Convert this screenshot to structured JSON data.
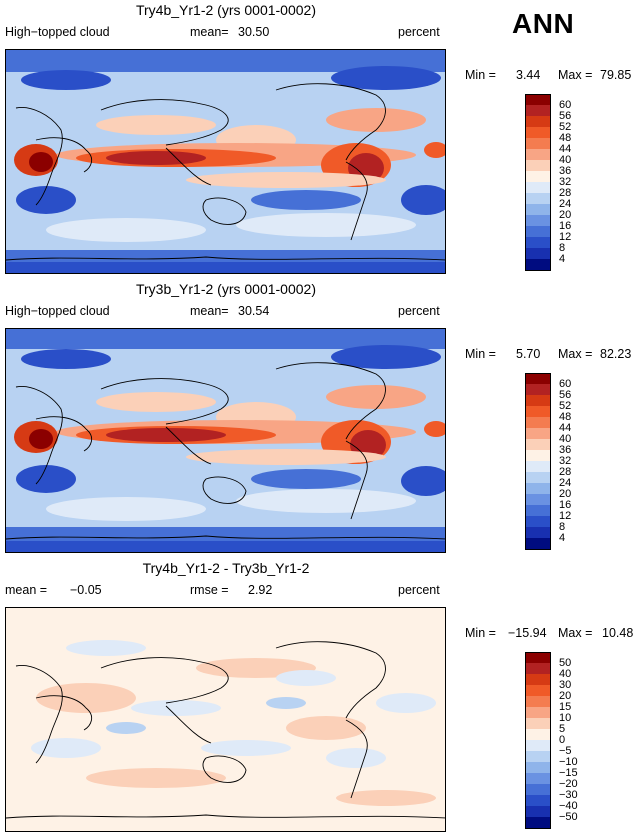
{
  "page_title": "ANN",
  "panels": [
    {
      "title": "Try4b_Yr1-2 (yrs 0001-0002)",
      "left_label": "High−topped cloud",
      "mid_label": "mean=",
      "mid_value": "30.50",
      "right_label": "percent",
      "min_label": "Min =",
      "min_value": "3.44",
      "max_label": "Max =",
      "max_value": "79.85",
      "colorbar_levels": [
        "60",
        "56",
        "52",
        "48",
        "44",
        "40",
        "36",
        "32",
        "28",
        "24",
        "20",
        "16",
        "12",
        "8",
        "4"
      ],
      "colorbar_colors": [
        "#8b0000",
        "#b22222",
        "#d63a14",
        "#f05a28",
        "#f47c50",
        "#f8a585",
        "#fbd0b8",
        "#fef2e6",
        "#dfeaf8",
        "#b8d2f2",
        "#8fb4ea",
        "#6a92e2",
        "#4670d6",
        "#2a4fc8",
        "#1830b0",
        "#000c80"
      ]
    },
    {
      "title": "Try3b_Yr1-2 (yrs 0001-0002)",
      "left_label": "High−topped cloud",
      "mid_label": "mean=",
      "mid_value": "30.54",
      "right_label": "percent",
      "min_label": "Min =",
      "min_value": "5.70",
      "max_label": "Max =",
      "max_value": "82.23",
      "colorbar_levels": [
        "60",
        "56",
        "52",
        "48",
        "44",
        "40",
        "36",
        "32",
        "28",
        "24",
        "20",
        "16",
        "12",
        "8",
        "4"
      ],
      "colorbar_colors": [
        "#8b0000",
        "#b22222",
        "#d63a14",
        "#f05a28",
        "#f47c50",
        "#f8a585",
        "#fbd0b8",
        "#fef2e6",
        "#dfeaf8",
        "#b8d2f2",
        "#8fb4ea",
        "#6a92e2",
        "#4670d6",
        "#2a4fc8",
        "#1830b0",
        "#000c80"
      ]
    },
    {
      "title": "Try4b_Yr1-2 - Try3b_Yr1-2",
      "left_label": "mean =",
      "left_value": "−0.05",
      "mid_label": "rmse =",
      "mid_value": "2.92",
      "right_label": "percent",
      "min_label": "Min =",
      "min_value": "−15.94",
      "max_label": "Max =",
      "max_value": "10.48",
      "colorbar_levels": [
        "50",
        "40",
        "30",
        "20",
        "15",
        "10",
        "5",
        "0",
        "−5",
        "−10",
        "−15",
        "−20",
        "−30",
        "−40",
        "−50"
      ],
      "colorbar_colors": [
        "#8b0000",
        "#b22222",
        "#d63a14",
        "#f05a28",
        "#f47c50",
        "#f8a585",
        "#fbd0b8",
        "#fef2e6",
        "#dfeaf8",
        "#b8d2f2",
        "#8fb4ea",
        "#6a92e2",
        "#4670d6",
        "#2a4fc8",
        "#1830b0",
        "#000c80"
      ]
    }
  ]
}
